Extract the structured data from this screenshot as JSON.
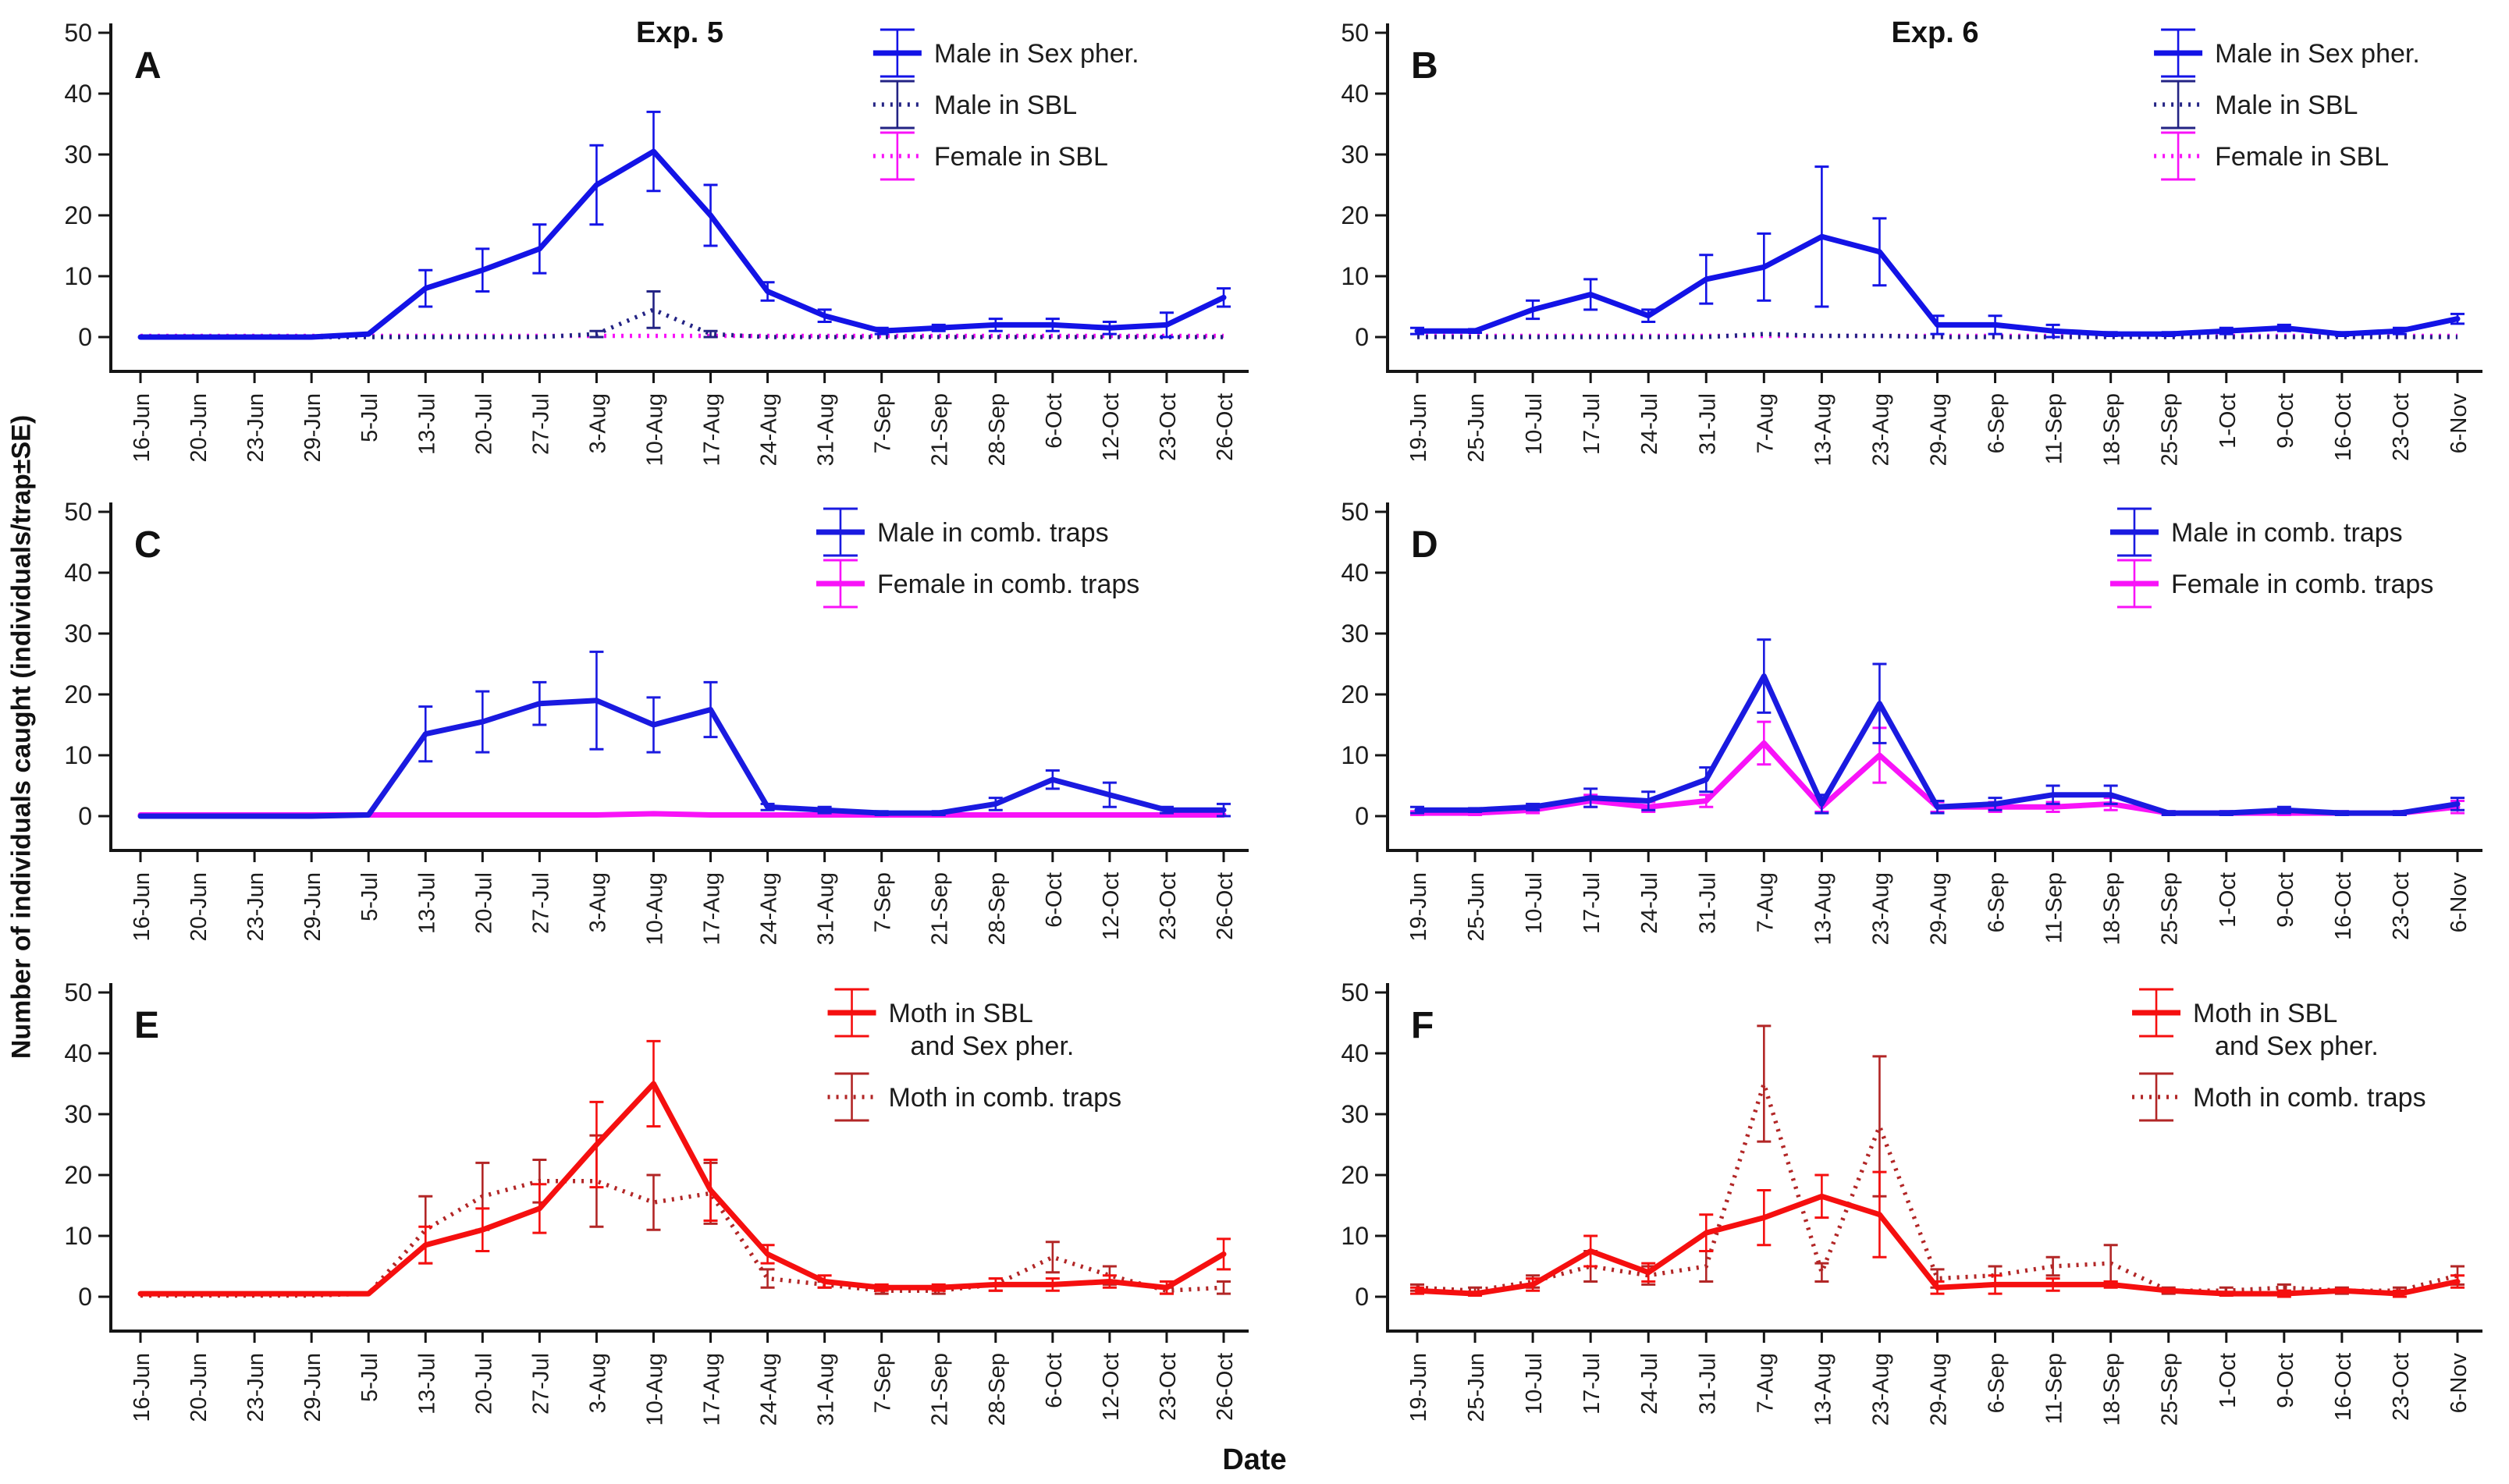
{
  "figure": {
    "y_axis_label": "Number of individuals caught (individuals/trap±SE)",
    "x_axis_label": "Date",
    "background": "#ffffff",
    "axis_color": "#151515",
    "text_color": "#1c1c1c"
  },
  "chart_data": [
    {
      "type": "line",
      "panel_label": "A",
      "title": "Exp. 5",
      "legend_position": "top-right",
      "legend_x": 0.67,
      "grid": false,
      "ylim": [
        0,
        50
      ],
      "yticks": [
        0,
        10,
        20,
        30,
        40,
        50
      ],
      "categories": [
        "16-Jun",
        "20-Jun",
        "23-Jun",
        "29-Jun",
        "5-Jul",
        "13-Jul",
        "20-Jul",
        "27-Jul",
        "3-Aug",
        "10-Aug",
        "17-Aug",
        "24-Aug",
        "31-Aug",
        "7-Sep",
        "21-Sep",
        "28-Sep",
        "6-Oct",
        "12-Oct",
        "23-Oct",
        "26-Oct"
      ],
      "series": [
        {
          "name": "Male in Sex pher.",
          "legend_lines": [
            "Male in Sex pher."
          ],
          "color": "#1313e6",
          "style": "solid",
          "values": [
            0,
            0,
            0,
            0,
            0.5,
            8,
            11,
            14.5,
            25,
            30.5,
            20,
            7.5,
            3.5,
            1,
            1.5,
            2,
            2,
            1.5,
            2,
            6.5
          ],
          "se": [
            0,
            0,
            0,
            0,
            0,
            3,
            3.5,
            4,
            6.5,
            6.5,
            5,
            1.5,
            1,
            0.5,
            0.5,
            1,
            1,
            1,
            2,
            1.5
          ]
        },
        {
          "name": "Male in SBL",
          "legend_lines": [
            "Male in SBL"
          ],
          "color": "#232384",
          "style": "dotted",
          "values": [
            0,
            0,
            0,
            0,
            0,
            0,
            0,
            0,
            0.5,
            4.5,
            0.5,
            0,
            0,
            0,
            0,
            0,
            0,
            0,
            0,
            0
          ],
          "se": [
            0,
            0,
            0,
            0,
            0,
            0,
            0,
            0,
            0.5,
            3,
            0.5,
            0,
            0,
            0,
            0,
            0,
            0,
            0,
            0,
            0
          ]
        },
        {
          "name": "Female in SBL",
          "legend_lines": [
            "Female in SBL"
          ],
          "color": "#f813f8",
          "style": "dotted",
          "values": [
            0.2,
            0.2,
            0.2,
            0.2,
            0.2,
            0.2,
            0.2,
            0.2,
            0.2,
            0.2,
            0.2,
            0.2,
            0.2,
            0.2,
            0.2,
            0.2,
            0.2,
            0.2,
            0.2,
            0.2
          ],
          "se": [
            0,
            0,
            0,
            0,
            0,
            0,
            0,
            0,
            0,
            0,
            0,
            0,
            0,
            0,
            0,
            0,
            0,
            0,
            0,
            0
          ]
        }
      ]
    },
    {
      "type": "line",
      "panel_label": "B",
      "title": "Exp. 6",
      "legend_position": "top-right",
      "legend_x": 0.7,
      "grid": false,
      "ylim": [
        0,
        50
      ],
      "yticks": [
        0,
        10,
        20,
        30,
        40,
        50
      ],
      "categories": [
        "19-Jun",
        "25-Jun",
        "10-Jul",
        "17-Jul",
        "24-Jul",
        "31-Jul",
        "7-Aug",
        "13-Aug",
        "23-Aug",
        "29-Aug",
        "6-Sep",
        "11-Sep",
        "18-Sep",
        "25-Sep",
        "1-Oct",
        "9-Oct",
        "16-Oct",
        "23-Oct",
        "6-Nov"
      ],
      "series": [
        {
          "name": "Male in Sex pher.",
          "legend_lines": [
            "Male in Sex pher."
          ],
          "color": "#1313e6",
          "style": "solid",
          "values": [
            1,
            1,
            4.5,
            7,
            3.5,
            9.5,
            11.5,
            16.5,
            14,
            2,
            2,
            1,
            0.5,
            0.5,
            1,
            1.5,
            0.5,
            1,
            3
          ],
          "se": [
            0.5,
            0.3,
            1.5,
            2.5,
            1,
            4,
            5.5,
            11.5,
            5.5,
            1.5,
            1.5,
            1,
            0.3,
            0.3,
            0.5,
            0.5,
            0.3,
            0.5,
            0.8
          ]
        },
        {
          "name": "Male in SBL",
          "legend_lines": [
            "Male in SBL"
          ],
          "color": "#232384",
          "style": "dotted",
          "values": [
            0,
            0,
            0,
            0,
            0,
            0,
            0.5,
            0.2,
            0.2,
            0,
            0,
            0,
            0,
            0,
            0,
            0,
            0,
            0,
            0
          ],
          "se": [
            0,
            0,
            0,
            0,
            0,
            0,
            0,
            0,
            0,
            0,
            0,
            0,
            0,
            0,
            0,
            0,
            0,
            0,
            0
          ]
        },
        {
          "name": "Female in SBL",
          "legend_lines": [
            "Female in SBL"
          ],
          "color": "#f813f8",
          "style": "dotted",
          "values": [
            0.2,
            0.2,
            0.2,
            0.2,
            0.2,
            0.2,
            0.2,
            0.2,
            0.2,
            0.2,
            0.2,
            0.2,
            0.2,
            0.2,
            0.2,
            0.2,
            0.2,
            0.2,
            0.2
          ],
          "se": [
            0,
            0,
            0,
            0,
            0,
            0,
            0,
            0,
            0,
            0,
            0,
            0,
            0,
            0,
            0,
            0,
            0,
            0,
            0
          ]
        }
      ]
    },
    {
      "type": "line",
      "panel_label": "C",
      "title": "",
      "legend_position": "top-right",
      "legend_x": 0.62,
      "grid": false,
      "ylim": [
        0,
        50
      ],
      "yticks": [
        0,
        10,
        20,
        30,
        40,
        50
      ],
      "categories": [
        "16-Jun",
        "20-Jun",
        "23-Jun",
        "29-Jun",
        "5-Jul",
        "13-Jul",
        "20-Jul",
        "27-Jul",
        "3-Aug",
        "10-Aug",
        "17-Aug",
        "24-Aug",
        "31-Aug",
        "7-Sep",
        "21-Sep",
        "28-Sep",
        "6-Oct",
        "12-Oct",
        "23-Oct",
        "26-Oct"
      ],
      "series": [
        {
          "name": "Male in comb. traps",
          "legend_lines": [
            "Male in comb. traps"
          ],
          "color": "#1a1ae0",
          "style": "solid",
          "values": [
            0,
            0,
            0,
            0,
            0.2,
            13.5,
            15.5,
            18.5,
            19,
            15,
            17.5,
            1.5,
            1,
            0.5,
            0.5,
            2,
            6,
            3.5,
            1,
            1
          ],
          "se": [
            0,
            0,
            0,
            0,
            0,
            4.5,
            5,
            3.5,
            8,
            4.5,
            4.5,
            0.5,
            0.5,
            0.3,
            0.3,
            1,
            1.5,
            2,
            0.5,
            1
          ]
        },
        {
          "name": "Female in comb. traps",
          "legend_lines": [
            "Female in comb. traps"
          ],
          "color": "#f813f8",
          "style": "solid",
          "values": [
            0.2,
            0.2,
            0.2,
            0.2,
            0.2,
            0.2,
            0.2,
            0.2,
            0.2,
            0.4,
            0.2,
            0.2,
            0.2,
            0.2,
            0.2,
            0.2,
            0.2,
            0.2,
            0.2,
            0.2
          ],
          "se": [
            0,
            0,
            0,
            0,
            0,
            0,
            0,
            0,
            0,
            0,
            0,
            0,
            0,
            0,
            0,
            0,
            0,
            0,
            0,
            0
          ]
        }
      ]
    },
    {
      "type": "line",
      "panel_label": "D",
      "title": "",
      "legend_position": "top-right",
      "legend_x": 0.66,
      "grid": false,
      "ylim": [
        0,
        50
      ],
      "yticks": [
        0,
        10,
        20,
        30,
        40,
        50
      ],
      "categories": [
        "19-Jun",
        "25-Jun",
        "10-Jul",
        "17-Jul",
        "24-Jul",
        "31-Jul",
        "7-Aug",
        "13-Aug",
        "23-Aug",
        "29-Aug",
        "6-Sep",
        "11-Sep",
        "18-Sep",
        "25-Sep",
        "1-Oct",
        "9-Oct",
        "16-Oct",
        "23-Oct",
        "6-Nov"
      ],
      "series": [
        {
          "name": "Male in comb. traps",
          "legend_lines": [
            "Male in comb. traps"
          ],
          "color": "#1a1ae0",
          "style": "solid",
          "values": [
            1,
            1,
            1.5,
            3,
            2.5,
            6,
            23,
            2,
            18.5,
            1.5,
            2,
            3.5,
            3.5,
            0.5,
            0.5,
            1,
            0.5,
            0.5,
            2
          ],
          "se": [
            0.5,
            0.3,
            0.5,
            1.5,
            1.5,
            2,
            6,
            1.5,
            6.5,
            1,
            1,
            1.5,
            1.5,
            0.3,
            0.3,
            0.5,
            0.3,
            0.3,
            1
          ]
        },
        {
          "name": "Female in comb. traps",
          "legend_lines": [
            "Female in comb. traps"
          ],
          "color": "#f813f8",
          "style": "solid",
          "values": [
            0.5,
            0.5,
            1,
            2.5,
            1.5,
            2.5,
            12,
            1.5,
            10,
            1.5,
            1.5,
            1.5,
            2,
            0.5,
            0.5,
            0.5,
            0.5,
            0.5,
            1.5
          ],
          "se": [
            0.3,
            0.3,
            0.5,
            1,
            0.8,
            1,
            3.5,
            0.8,
            4.5,
            0.8,
            0.8,
            0.8,
            1,
            0.3,
            0.3,
            0.3,
            0.3,
            0.3,
            1
          ]
        }
      ]
    },
    {
      "type": "line",
      "panel_label": "E",
      "title": "",
      "legend_position": "top-right",
      "legend_x": 0.63,
      "grid": false,
      "ylim": [
        0,
        50
      ],
      "yticks": [
        0,
        10,
        20,
        30,
        40,
        50
      ],
      "categories": [
        "16-Jun",
        "20-Jun",
        "23-Jun",
        "29-Jun",
        "5-Jul",
        "13-Jul",
        "20-Jul",
        "27-Jul",
        "3-Aug",
        "10-Aug",
        "17-Aug",
        "24-Aug",
        "31-Aug",
        "7-Sep",
        "21-Sep",
        "28-Sep",
        "6-Oct",
        "12-Oct",
        "23-Oct",
        "26-Oct"
      ],
      "series": [
        {
          "name": "Moth in SBL and Sex pher.",
          "legend_lines": [
            "Moth in SBL",
            "and Sex pher."
          ],
          "color": "#f50f0f",
          "style": "solid",
          "values": [
            0.5,
            0.5,
            0.5,
            0.5,
            0.5,
            8.5,
            11,
            14.5,
            25,
            35,
            17.5,
            7,
            2.5,
            1.5,
            1.5,
            2,
            2,
            2.5,
            1.5,
            7
          ],
          "se": [
            0,
            0,
            0,
            0,
            0,
            3,
            3.5,
            4,
            7,
            7,
            5,
            1.5,
            1,
            0.5,
            0.5,
            1,
            1,
            1,
            1,
            2.5
          ]
        },
        {
          "name": "Moth in comb. traps",
          "legend_lines": [
            "Moth in comb. traps"
          ],
          "color": "#b22626",
          "style": "dotted",
          "values": [
            0.2,
            0.2,
            0.2,
            0.2,
            0.5,
            11,
            16.5,
            19,
            19,
            15.5,
            17,
            3,
            2,
            1,
            1,
            2,
            6.5,
            3.5,
            1,
            1.5
          ],
          "se": [
            0,
            0,
            0,
            0,
            0,
            5.5,
            5.5,
            3.5,
            7.5,
            4.5,
            5,
            1.5,
            0.5,
            0.5,
            0.5,
            1,
            2.5,
            1.5,
            0.5,
            1
          ]
        }
      ]
    },
    {
      "type": "line",
      "panel_label": "F",
      "title": "",
      "legend_position": "top-right",
      "legend_x": 0.68,
      "grid": false,
      "ylim": [
        0,
        50
      ],
      "yticks": [
        0,
        10,
        20,
        30,
        40,
        50
      ],
      "categories": [
        "19-Jun",
        "25-Jun",
        "10-Jul",
        "17-Jul",
        "24-Jul",
        "31-Jul",
        "7-Aug",
        "13-Aug",
        "23-Aug",
        "29-Aug",
        "6-Sep",
        "11-Sep",
        "18-Sep",
        "25-Sep",
        "1-Oct",
        "9-Oct",
        "16-Oct",
        "23-Oct",
        "6-Nov"
      ],
      "series": [
        {
          "name": "Moth in SBL and Sex pher.",
          "legend_lines": [
            "Moth in SBL",
            "and Sex pher."
          ],
          "color": "#f50f0f",
          "style": "solid",
          "values": [
            1,
            0.5,
            2,
            7.5,
            4,
            10.5,
            13,
            16.5,
            13.5,
            1.5,
            2,
            2,
            2,
            1,
            0.5,
            0.5,
            1,
            0.5,
            2.5
          ],
          "se": [
            0.5,
            0.3,
            1,
            2.5,
            1.5,
            3,
            4.5,
            3.5,
            7,
            1,
            1.5,
            1,
            0.5,
            0.3,
            0.3,
            0.5,
            0.3,
            0.5,
            1
          ]
        },
        {
          "name": "Moth in comb. traps",
          "legend_lines": [
            "Moth in comb. traps"
          ],
          "color": "#b22626",
          "style": "dotted",
          "values": [
            1.5,
            1,
            2.5,
            5,
            3.5,
            5,
            35,
            4,
            28,
            3,
            3.5,
            5,
            5.5,
            1,
            1,
            1.5,
            1,
            1,
            3.5
          ],
          "se": [
            0.5,
            0.5,
            1,
            2.5,
            1.5,
            2.5,
            9.5,
            1.5,
            11.5,
            1.5,
            1.5,
            1.5,
            3,
            0.5,
            0.5,
            0.5,
            0.5,
            0.5,
            1.5
          ]
        }
      ]
    }
  ]
}
